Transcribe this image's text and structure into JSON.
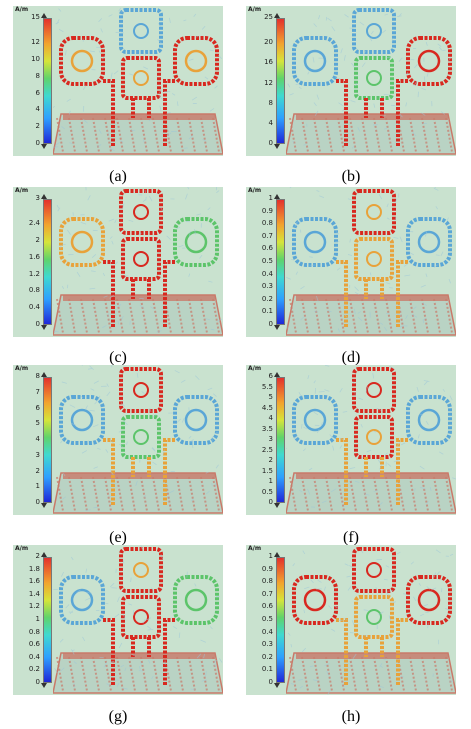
{
  "panels": [
    {
      "caption": "(a)",
      "unit": "A/m",
      "ticks": [
        "0",
        "2",
        "4",
        "6",
        "8",
        "10",
        "12",
        "15"
      ],
      "max": 15,
      "variant": "a"
    },
    {
      "caption": "(b)",
      "unit": "A/m",
      "ticks": [
        "0",
        "4",
        "8",
        "12",
        "16",
        "20",
        "25"
      ],
      "max": 25,
      "variant": "b"
    },
    {
      "caption": "(c)",
      "unit": "A/m",
      "ticks": [
        "0",
        "0.4",
        "0.8",
        "1.2",
        "1.6",
        "2",
        "2.4",
        "3"
      ],
      "max": 3,
      "variant": "c"
    },
    {
      "caption": "(d)",
      "unit": "A/m",
      "ticks": [
        "0",
        "0.1",
        "0.2",
        "0.3",
        "0.4",
        "0.5",
        "0.6",
        "0.7",
        "0.8",
        "0.9",
        "1"
      ],
      "max": 1,
      "variant": "d"
    },
    {
      "caption": "(e)",
      "unit": "A/m",
      "ticks": [
        "0",
        "1",
        "2",
        "3",
        "4",
        "5",
        "6",
        "7",
        "8"
      ],
      "max": 8,
      "variant": "e"
    },
    {
      "caption": "(f)",
      "unit": "A/m",
      "ticks": [
        "0",
        "0.5",
        "1",
        "1.5",
        "2",
        "2.5",
        "3",
        "3.5",
        "4",
        "4.5",
        "5",
        "5.5",
        "6"
      ],
      "max": 6,
      "variant": "f"
    },
    {
      "caption": "(g)",
      "unit": "A/m",
      "ticks": [
        "0",
        "0.2",
        "0.4",
        "0.6",
        "0.8",
        "1",
        "1.2",
        "1.4",
        "1.6",
        "1.8",
        "2"
      ],
      "max": 2,
      "variant": "g"
    },
    {
      "caption": "(h)",
      "unit": "A/m",
      "ticks": [
        "0",
        "0.1",
        "0.2",
        "0.3",
        "0.4",
        "0.5",
        "0.6",
        "0.7",
        "0.8",
        "0.9",
        "1"
      ],
      "max": 1,
      "variant": "h"
    }
  ],
  "colors": {
    "background": "#c9e2cf",
    "hot": "#d8281f",
    "warm": "#c97a6a",
    "cool": "#5aa6d6",
    "field": "#9cc6d9"
  }
}
